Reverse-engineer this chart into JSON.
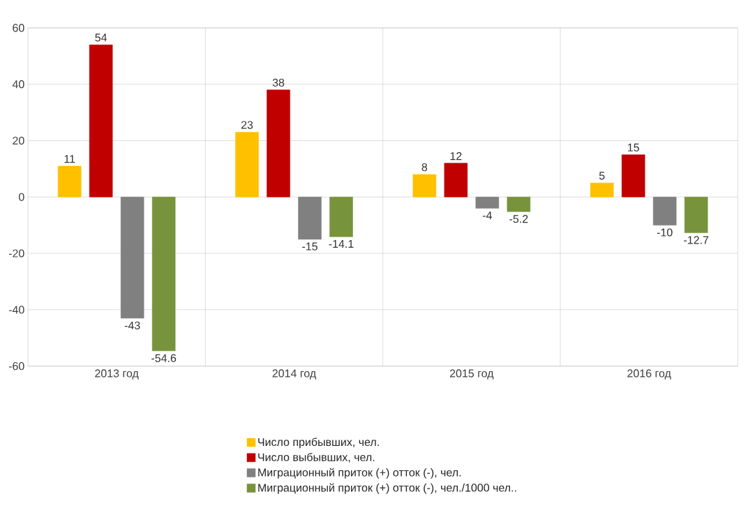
{
  "chart_data": {
    "type": "bar",
    "categories": [
      "2013 год",
      "2014 год",
      "2015 год",
      "2016 год"
    ],
    "series": [
      {
        "name": "Число прибывших, чел.",
        "color": "#ffc000",
        "values": [
          11,
          23,
          8,
          5
        ]
      },
      {
        "name": "Число выбывших, чел.",
        "color": "#c00000",
        "values": [
          54,
          38,
          12,
          15
        ]
      },
      {
        "name": "Миграционный приток (+) отток (-), чел.",
        "color": "#808080",
        "values": [
          -43,
          -15,
          -4,
          -10
        ]
      },
      {
        "name": "Миграционный приток (+) отток (-), чел./1000 чел..",
        "color": "#77933c",
        "values": [
          -54.6,
          -14.1,
          -5.2,
          -12.7
        ]
      }
    ],
    "ylim": [
      -60,
      60
    ],
    "yticks": [
      -60,
      -40,
      -20,
      0,
      20,
      40,
      60
    ],
    "grid": true,
    "legend": "bottom",
    "data_labels": true
  }
}
